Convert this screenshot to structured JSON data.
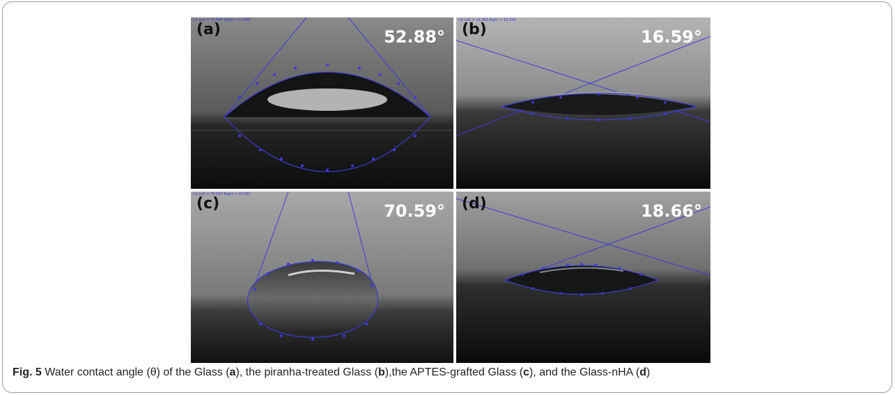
{
  "panels": [
    {
      "label": "(a)",
      "angle": "52.88°",
      "readout": "CA Left = 52.884 Right = 52.888"
    },
    {
      "label": "(b)",
      "angle": "16.59°",
      "readout": "CA Left = 16.586 Right = 16.594"
    },
    {
      "label": "(c)",
      "angle": "70.59°",
      "readout": "CA Left = 70.587 Right = 70.591"
    },
    {
      "label": "(d)",
      "angle": "18.66°",
      "readout": ""
    }
  ],
  "caption": {
    "fig": "Fig. 5",
    "t1": " Water contact angle (θ) of the Glass (",
    "a": "a",
    "t2": "), the piranha-treated Glass (",
    "b": "b",
    "t3": "),the APTES-grafted Glass (",
    "c": "c",
    "t4": "), and the Glass-nHA (",
    "d": "d",
    "t5": ")"
  },
  "colors": {
    "fit_line": "#3c3cd6",
    "angle_text": "#ffffff"
  }
}
